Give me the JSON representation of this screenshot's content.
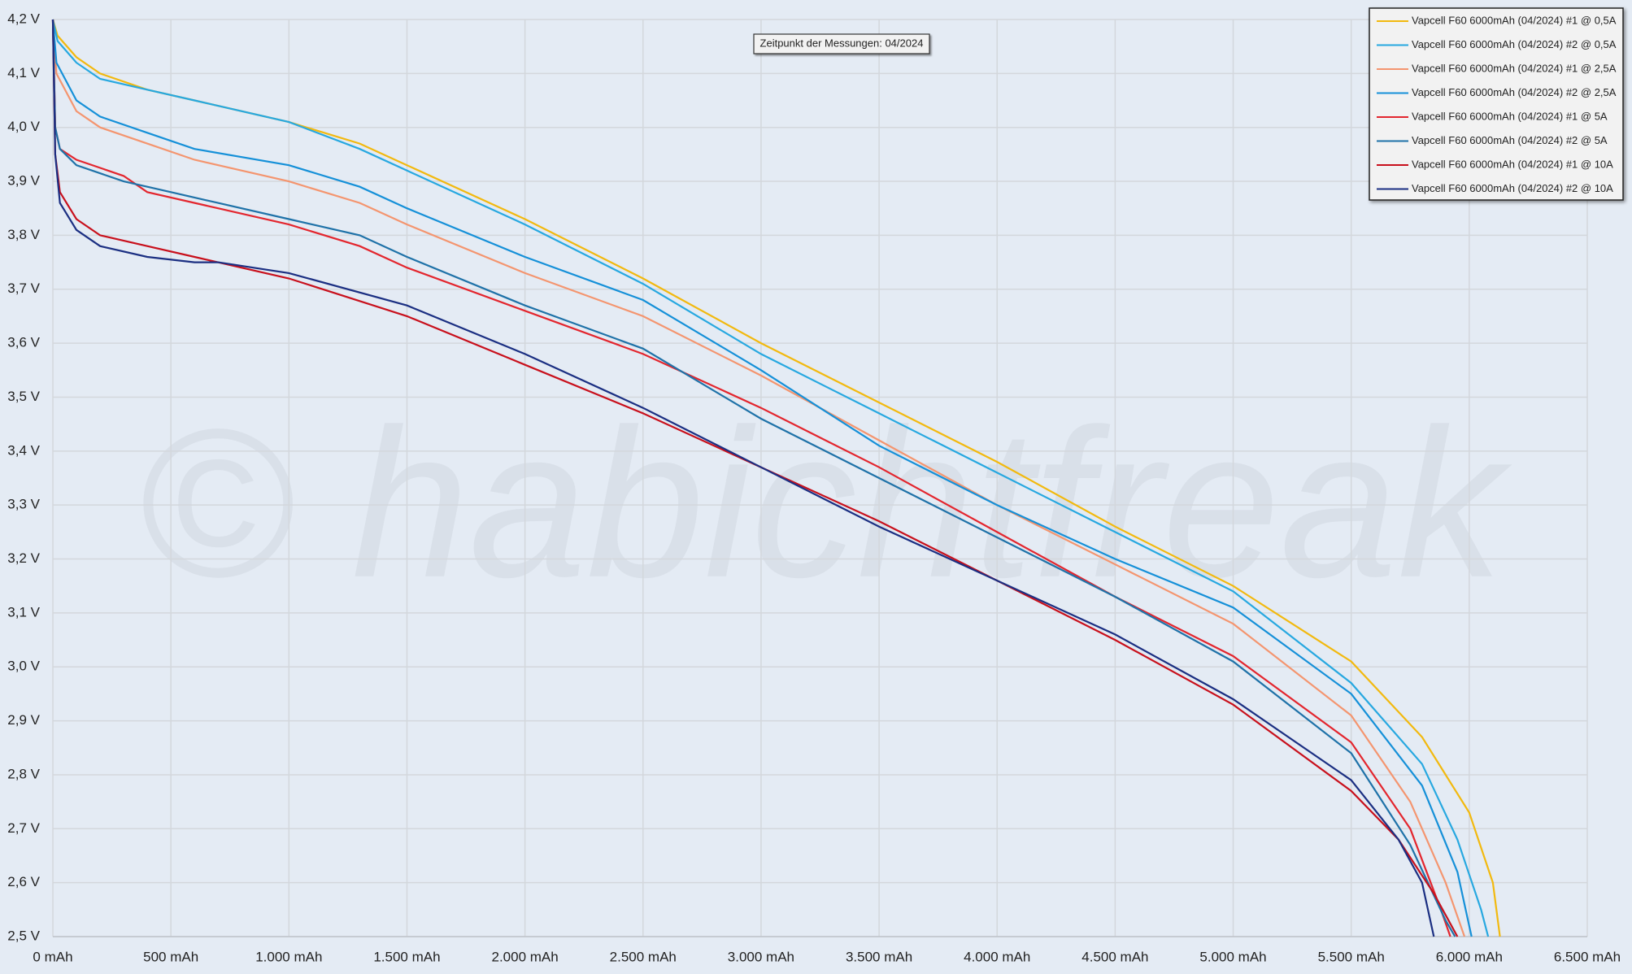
{
  "chart_data": {
    "type": "line",
    "watermark": "© habichtfreak",
    "annotation": "Zeitpunkt der Messungen: 04/2024",
    "xlim": [
      0,
      6500
    ],
    "xticks": [
      {
        "value": 0,
        "label": "0 mAh"
      },
      {
        "value": 500,
        "label": "500 mAh"
      },
      {
        "value": 1000,
        "label": "1.000 mAh"
      },
      {
        "value": 1500,
        "label": "1.500 mAh"
      },
      {
        "value": 2000,
        "label": "2.000 mAh"
      },
      {
        "value": 2500,
        "label": "2.500 mAh"
      },
      {
        "value": 3000,
        "label": "3.000 mAh"
      },
      {
        "value": 3500,
        "label": "3.500 mAh"
      },
      {
        "value": 4000,
        "label": "4.000 mAh"
      },
      {
        "value": 4500,
        "label": "4.500 mAh"
      },
      {
        "value": 5000,
        "label": "5.000 mAh"
      },
      {
        "value": 5500,
        "label": "5.500 mAh"
      },
      {
        "value": 6000,
        "label": "6.000 mAh"
      },
      {
        "value": 6500,
        "label": "6.500 mAh"
      }
    ],
    "ylim": [
      2.5,
      4.2
    ],
    "yticks": [
      {
        "value": 2.5,
        "label": "2,5 V"
      },
      {
        "value": 2.6,
        "label": "2,6 V"
      },
      {
        "value": 2.7,
        "label": "2,7 V"
      },
      {
        "value": 2.8,
        "label": "2,8 V"
      },
      {
        "value": 2.9,
        "label": "2,9 V"
      },
      {
        "value": 3.0,
        "label": "3,0 V"
      },
      {
        "value": 3.1,
        "label": "3,1 V"
      },
      {
        "value": 3.2,
        "label": "3,2 V"
      },
      {
        "value": 3.3,
        "label": "3,3 V"
      },
      {
        "value": 3.4,
        "label": "3,4 V"
      },
      {
        "value": 3.5,
        "label": "3,5 V"
      },
      {
        "value": 3.6,
        "label": "3,6 V"
      },
      {
        "value": 3.7,
        "label": "3,7 V"
      },
      {
        "value": 3.8,
        "label": "3,8 V"
      },
      {
        "value": 3.9,
        "label": "3,9 V"
      },
      {
        "value": 4.0,
        "label": "4,0 V"
      },
      {
        "value": 4.1,
        "label": "4,1 V"
      },
      {
        "value": 4.2,
        "label": "4,2 V"
      }
    ],
    "grid": true,
    "legend": "top-right",
    "series": [
      {
        "name": "Vapcell F60 6000mAh (04/2024) #1 @ 0,5A",
        "color": "#f2b90f",
        "x": [
          0,
          20,
          100,
          200,
          400,
          600,
          1000,
          1300,
          1500,
          2000,
          2500,
          3000,
          3500,
          4000,
          4500,
          5000,
          5500,
          5800,
          6000,
          6100,
          6130
        ],
        "values": [
          4.2,
          4.17,
          4.13,
          4.1,
          4.07,
          4.05,
          4.01,
          3.97,
          3.93,
          3.83,
          3.72,
          3.6,
          3.49,
          3.38,
          3.26,
          3.15,
          3.01,
          2.87,
          2.73,
          2.6,
          2.5
        ]
      },
      {
        "name": "Vapcell F60 6000mAh (04/2024) #2 @ 0,5A",
        "color": "#27a8e0",
        "x": [
          0,
          20,
          100,
          200,
          400,
          600,
          1000,
          1300,
          1500,
          2000,
          2500,
          3000,
          3500,
          4000,
          4500,
          5000,
          5500,
          5800,
          5950,
          6050,
          6080
        ],
        "values": [
          4.2,
          4.16,
          4.12,
          4.09,
          4.07,
          4.05,
          4.01,
          3.96,
          3.92,
          3.82,
          3.71,
          3.58,
          3.47,
          3.36,
          3.25,
          3.14,
          2.97,
          2.82,
          2.68,
          2.55,
          2.5
        ]
      },
      {
        "name": "Vapcell F60 6000mAh (04/2024) #1 @ 2,5A",
        "color": "#f4956f",
        "x": [
          0,
          15,
          100,
          200,
          400,
          600,
          1000,
          1300,
          1500,
          2000,
          2500,
          3000,
          3500,
          4000,
          4500,
          5000,
          5500,
          5750,
          5900,
          5980
        ],
        "values": [
          4.2,
          4.1,
          4.03,
          4.0,
          3.97,
          3.94,
          3.9,
          3.86,
          3.82,
          3.73,
          3.65,
          3.54,
          3.42,
          3.3,
          3.19,
          3.08,
          2.91,
          2.75,
          2.6,
          2.5
        ]
      },
      {
        "name": "Vapcell F60 6000mAh (04/2024) #2 @ 2,5A",
        "color": "#1590d8",
        "x": [
          0,
          15,
          100,
          200,
          400,
          600,
          1000,
          1300,
          1500,
          2000,
          2500,
          3000,
          3500,
          4000,
          4500,
          5000,
          5500,
          5800,
          5950,
          6010
        ],
        "values": [
          4.2,
          4.12,
          4.05,
          4.02,
          3.99,
          3.96,
          3.93,
          3.89,
          3.85,
          3.76,
          3.68,
          3.55,
          3.41,
          3.3,
          3.2,
          3.11,
          2.95,
          2.78,
          2.62,
          2.5
        ]
      },
      {
        "name": "Vapcell F60 6000mAh (04/2024) #1 @ 5A",
        "color": "#e3262e",
        "x": [
          0,
          10,
          30,
          100,
          300,
          400,
          700,
          1000,
          1300,
          1500,
          2000,
          2500,
          3000,
          3500,
          4000,
          4500,
          5000,
          5500,
          5750,
          5880,
          5920
        ],
        "values": [
          4.2,
          4.0,
          3.96,
          3.94,
          3.91,
          3.88,
          3.85,
          3.82,
          3.78,
          3.74,
          3.66,
          3.58,
          3.48,
          3.37,
          3.25,
          3.13,
          3.02,
          2.86,
          2.7,
          2.55,
          2.5
        ]
      },
      {
        "name": "Vapcell F60 6000mAh (04/2024) #2 @ 5A",
        "color": "#1f72a8",
        "x": [
          0,
          10,
          30,
          100,
          300,
          500,
          700,
          1000,
          1300,
          1500,
          2000,
          2500,
          3000,
          3500,
          4000,
          4500,
          5000,
          5500,
          5750,
          5900,
          5940
        ],
        "values": [
          4.2,
          4.0,
          3.96,
          3.93,
          3.9,
          3.88,
          3.86,
          3.83,
          3.8,
          3.76,
          3.67,
          3.59,
          3.46,
          3.35,
          3.24,
          3.13,
          3.01,
          2.84,
          2.67,
          2.53,
          2.5
        ]
      },
      {
        "name": "Vapcell F60 6000mAh (04/2024) #1 @ 10A",
        "color": "#c8101c",
        "x": [
          0,
          10,
          30,
          100,
          200,
          400,
          600,
          1000,
          1500,
          2000,
          2500,
          3000,
          3500,
          4000,
          4500,
          5000,
          5500,
          5700,
          5850,
          5950
        ],
        "values": [
          4.2,
          3.95,
          3.88,
          3.83,
          3.8,
          3.78,
          3.76,
          3.72,
          3.65,
          3.56,
          3.47,
          3.37,
          3.27,
          3.16,
          3.05,
          2.93,
          2.77,
          2.68,
          2.58,
          2.5
        ]
      },
      {
        "name": "Vapcell F60 6000mAh (04/2024) #2 @ 10A",
        "color": "#1b2f82",
        "x": [
          0,
          10,
          30,
          100,
          200,
          400,
          600,
          700,
          1000,
          1500,
          2000,
          2500,
          3000,
          3500,
          4000,
          4500,
          5000,
          5500,
          5700,
          5800,
          5850
        ],
        "values": [
          4.2,
          3.95,
          3.86,
          3.81,
          3.78,
          3.76,
          3.75,
          3.75,
          3.73,
          3.67,
          3.58,
          3.48,
          3.37,
          3.26,
          3.16,
          3.06,
          2.94,
          2.79,
          2.68,
          2.6,
          2.5
        ]
      }
    ]
  }
}
